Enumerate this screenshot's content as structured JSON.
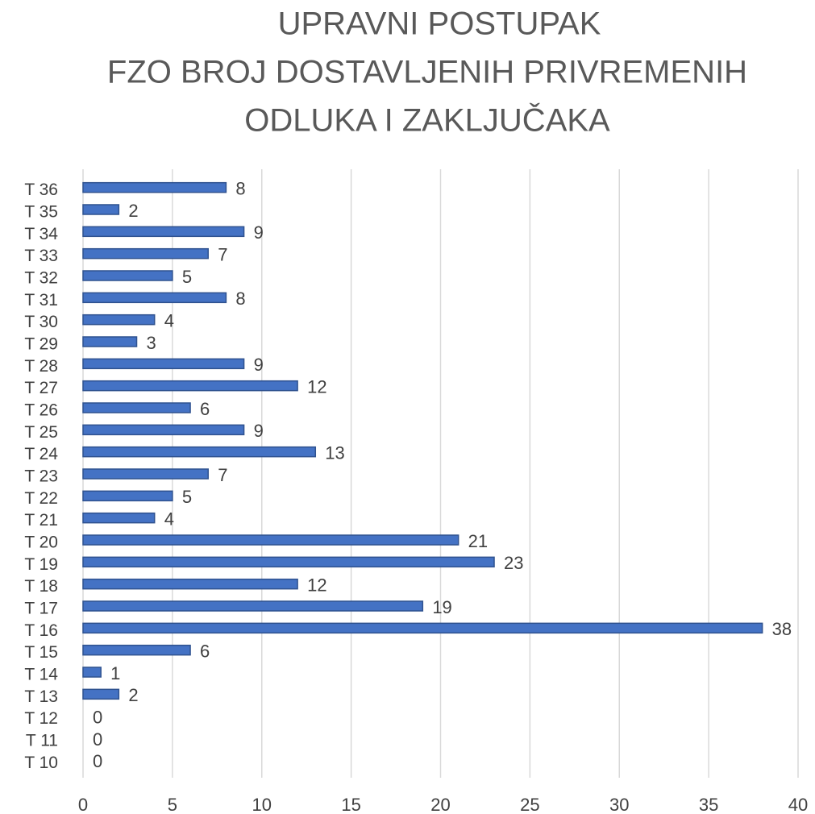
{
  "chart_data": {
    "type": "bar",
    "orientation": "horizontal",
    "title": [
      "UPRAVNI POSTUPAK",
      "FZO BROJ DOSTAVLJENIH PRIVREMENIH",
      "ODLUKA I ZAKLJUČAKA"
    ],
    "categories": [
      "T 10",
      "T 11",
      "T 12",
      "T 13",
      "T 14",
      "T 15",
      "T 16",
      "T 17",
      "T 18",
      "T 19",
      "T 20",
      "T 21",
      "T 22",
      "T 23",
      "T 24",
      "T 25",
      "T 26",
      "T 27",
      "T 28",
      "T 29",
      "T 30",
      "T 31",
      "T 32",
      "T 33",
      "T 34",
      "T 35",
      "T 36"
    ],
    "values": [
      0,
      0,
      0,
      2,
      1,
      6,
      38,
      19,
      12,
      23,
      21,
      4,
      5,
      7,
      13,
      9,
      6,
      12,
      9,
      3,
      4,
      8,
      5,
      7,
      9,
      2,
      8
    ],
    "color": "#4472c4",
    "xlim": [
      0,
      40
    ],
    "xticks": [
      0,
      5,
      10,
      15,
      20,
      25,
      30,
      35,
      40
    ],
    "grid": true
  }
}
